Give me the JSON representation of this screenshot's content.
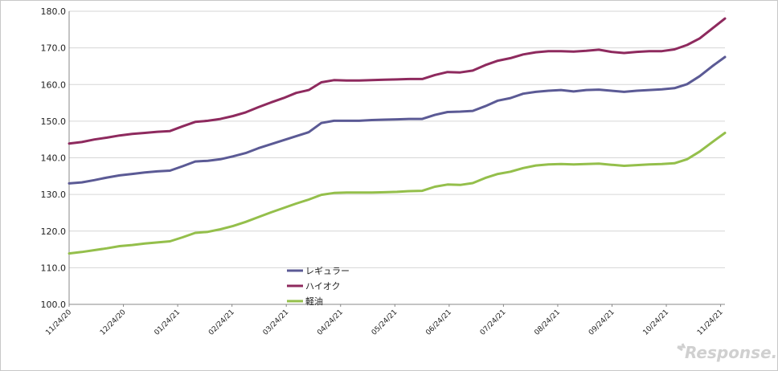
{
  "chart_data": {
    "type": "line",
    "title": "",
    "xlabel": "",
    "ylabel": "",
    "ylim": [
      100,
      180
    ],
    "y_ticks": [
      "100.0",
      "110.0",
      "120.0",
      "130.0",
      "140.0",
      "150.0",
      "160.0",
      "170.0",
      "180.0"
    ],
    "x_tick_labels": [
      "11/24/20",
      "12/24/20",
      "01/24/21",
      "02/24/21",
      "03/24/21",
      "04/24/21",
      "05/24/21",
      "06/24/21",
      "07/24/21",
      "08/24/21",
      "09/24/21",
      "10/24/21",
      "11/24/21"
    ],
    "grid": "horizontal",
    "legend_position": "bottom-center",
    "x_count": 53,
    "series": [
      {
        "name": "レギュラー",
        "color": "#5b5a95",
        "values": [
          133.0,
          133.3,
          133.9,
          134.6,
          135.2,
          135.6,
          136.0,
          136.3,
          136.5,
          137.7,
          139.0,
          139.2,
          139.6,
          140.4,
          141.3,
          142.6,
          143.7,
          144.8,
          145.9,
          147.0,
          149.5,
          150.1,
          150.1,
          150.1,
          150.3,
          150.4,
          150.5,
          150.6,
          150.6,
          151.7,
          152.5,
          152.6,
          152.8,
          154.1,
          155.6,
          156.3,
          157.5,
          158.0,
          158.3,
          158.5,
          158.1,
          158.5,
          158.6,
          158.3,
          158.0,
          158.3,
          158.5,
          158.7,
          159.0,
          160.1,
          162.3,
          165.0,
          167.5
        ]
      },
      {
        "name": "ハイオク",
        "color": "#8e2a5e",
        "values": [
          143.9,
          144.3,
          145.0,
          145.5,
          146.1,
          146.5,
          146.8,
          147.1,
          147.3,
          148.6,
          149.8,
          150.1,
          150.6,
          151.4,
          152.4,
          153.8,
          155.1,
          156.3,
          157.7,
          158.5,
          160.6,
          161.2,
          161.1,
          161.1,
          161.2,
          161.3,
          161.4,
          161.5,
          161.5,
          162.6,
          163.4,
          163.3,
          163.8,
          165.3,
          166.5,
          167.2,
          168.2,
          168.8,
          169.1,
          169.1,
          169.0,
          169.2,
          169.5,
          168.9,
          168.6,
          168.9,
          169.1,
          169.1,
          169.6,
          170.8,
          172.6,
          175.3,
          178.0
        ]
      },
      {
        "name": "軽油",
        "color": "#94bf4b",
        "values": [
          113.9,
          114.3,
          114.8,
          115.3,
          115.9,
          116.2,
          116.6,
          116.9,
          117.2,
          118.3,
          119.5,
          119.8,
          120.5,
          121.4,
          122.5,
          123.8,
          125.1,
          126.3,
          127.5,
          128.6,
          129.9,
          130.4,
          130.5,
          130.5,
          130.5,
          130.6,
          130.7,
          130.9,
          131.0,
          132.1,
          132.7,
          132.6,
          133.1,
          134.5,
          135.6,
          136.2,
          137.2,
          137.9,
          138.2,
          138.3,
          138.2,
          138.3,
          138.4,
          138.1,
          137.8,
          138.0,
          138.2,
          138.3,
          138.5,
          139.6,
          141.7,
          144.3,
          146.8
        ]
      }
    ]
  },
  "branding": {
    "text": "Response."
  }
}
